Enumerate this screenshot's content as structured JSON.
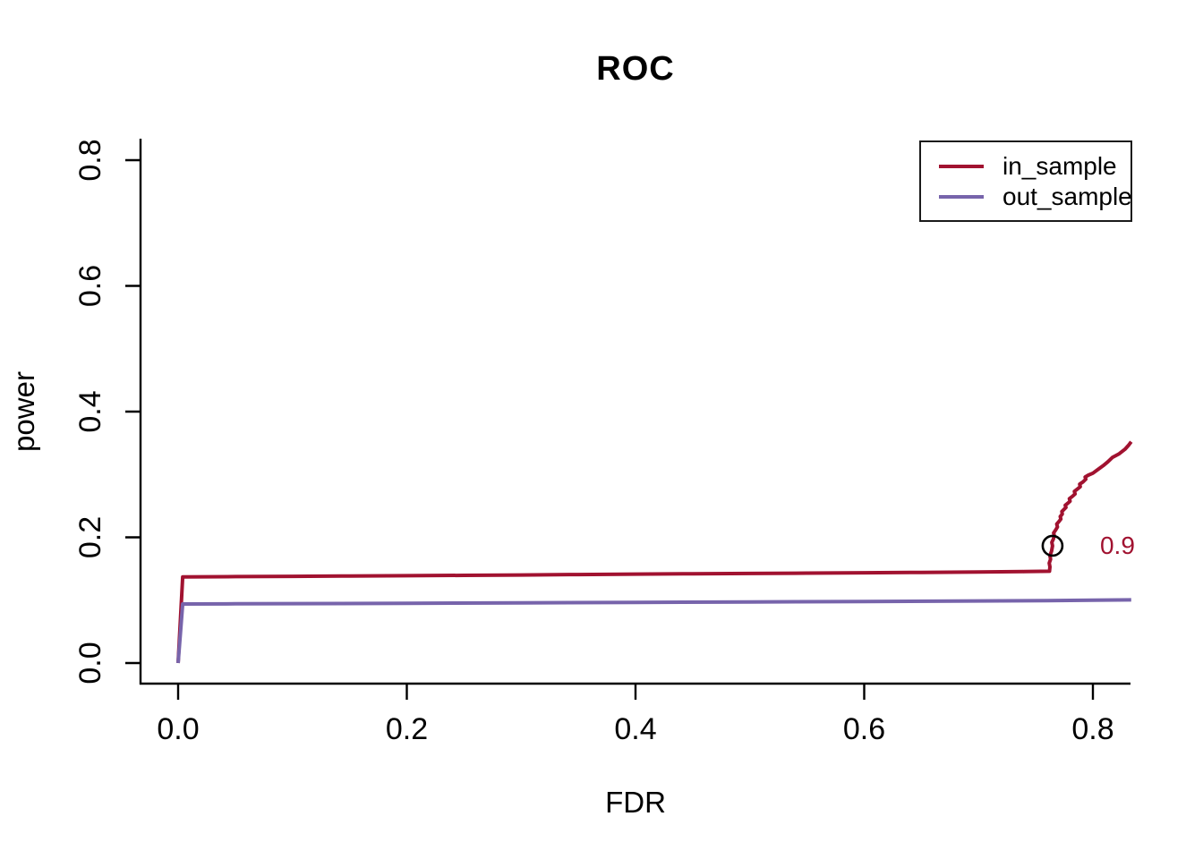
{
  "figure": {
    "background": "#ffffff",
    "axis_color": "#000000",
    "text_color": "#000000"
  },
  "chart_data": {
    "type": "line",
    "title": "ROC",
    "xlabel": "FDR",
    "ylabel": "power",
    "x_ticks": [
      0.0,
      0.2,
      0.4,
      0.6,
      0.8
    ],
    "y_ticks": [
      0.0,
      0.2,
      0.4,
      0.6,
      0.8
    ],
    "x_tick_labels": [
      "0.0",
      "0.2",
      "0.4",
      "0.6",
      "0.8"
    ],
    "y_tick_labels": [
      "0.0",
      "0.2",
      "0.4",
      "0.6",
      "0.8"
    ],
    "xlim": [
      -0.033,
      0.834
    ],
    "ylim": [
      -0.033,
      0.834
    ],
    "grid": false,
    "legend": {
      "position": "top-right",
      "entries": [
        {
          "label": "in_sample",
          "color": "#a11230"
        },
        {
          "label": "out_sample",
          "color": "#7764ab"
        }
      ]
    },
    "series": [
      {
        "name": "in_sample",
        "color": "#a11230",
        "points": [
          [
            0.0,
            0.0
          ],
          [
            0.004,
            0.137
          ],
          [
            0.05,
            0.1375
          ],
          [
            0.1,
            0.138
          ],
          [
            0.15,
            0.1385
          ],
          [
            0.2,
            0.139
          ],
          [
            0.25,
            0.1395
          ],
          [
            0.3,
            0.14
          ],
          [
            0.35,
            0.1408
          ],
          [
            0.4,
            0.1415
          ],
          [
            0.45,
            0.142
          ],
          [
            0.5,
            0.1425
          ],
          [
            0.55,
            0.143
          ],
          [
            0.6,
            0.1437
          ],
          [
            0.65,
            0.1442
          ],
          [
            0.7,
            0.1448
          ],
          [
            0.74,
            0.1455
          ],
          [
            0.762,
            0.146
          ],
          [
            0.7624,
            0.153
          ],
          [
            0.7618,
            0.159
          ],
          [
            0.763,
            0.165
          ],
          [
            0.7624,
            0.171
          ],
          [
            0.7638,
            0.178
          ],
          [
            0.7647,
            0.1865
          ],
          [
            0.7641,
            0.192
          ],
          [
            0.7655,
            0.1975
          ],
          [
            0.7662,
            0.203
          ],
          [
            0.7656,
            0.207
          ],
          [
            0.7675,
            0.212
          ],
          [
            0.769,
            0.2165
          ],
          [
            0.7684,
            0.221
          ],
          [
            0.7705,
            0.2255
          ],
          [
            0.772,
            0.229
          ],
          [
            0.7714,
            0.233
          ],
          [
            0.7732,
            0.237
          ],
          [
            0.7728,
            0.241
          ],
          [
            0.7748,
            0.2445
          ],
          [
            0.7764,
            0.2475
          ],
          [
            0.7758,
            0.251
          ],
          [
            0.7782,
            0.2545
          ],
          [
            0.78,
            0.2575
          ],
          [
            0.7794,
            0.2615
          ],
          [
            0.782,
            0.265
          ],
          [
            0.7844,
            0.269
          ],
          [
            0.7838,
            0.273
          ],
          [
            0.7865,
            0.277
          ],
          [
            0.789,
            0.2805
          ],
          [
            0.7884,
            0.2845
          ],
          [
            0.7912,
            0.288
          ],
          [
            0.7938,
            0.2925
          ],
          [
            0.7932,
            0.296
          ],
          [
            0.796,
            0.299
          ],
          [
            0.8,
            0.302
          ],
          [
            0.8045,
            0.308
          ],
          [
            0.809,
            0.314
          ],
          [
            0.813,
            0.32
          ],
          [
            0.817,
            0.327
          ],
          [
            0.823,
            0.333
          ],
          [
            0.828,
            0.34
          ],
          [
            0.831,
            0.346
          ],
          [
            0.8335,
            0.352
          ]
        ]
      },
      {
        "name": "out_sample",
        "color": "#7764ab",
        "points": [
          [
            0.0,
            0.0
          ],
          [
            0.004,
            0.094
          ],
          [
            0.05,
            0.0942
          ],
          [
            0.1,
            0.0945
          ],
          [
            0.2,
            0.095
          ],
          [
            0.3,
            0.0958
          ],
          [
            0.4,
            0.0965
          ],
          [
            0.5,
            0.0972
          ],
          [
            0.6,
            0.098
          ],
          [
            0.7,
            0.0988
          ],
          [
            0.76,
            0.0993
          ],
          [
            0.8,
            0.1
          ],
          [
            0.8335,
            0.1005
          ]
        ]
      }
    ],
    "annotations": [
      {
        "type": "point-marker",
        "shape": "open-circle",
        "color": "#000000",
        "x": 0.7647,
        "y": 0.1865
      },
      {
        "type": "text",
        "label": "0.9",
        "color": "#a11230",
        "x": 0.8215,
        "y": 0.187
      }
    ]
  }
}
